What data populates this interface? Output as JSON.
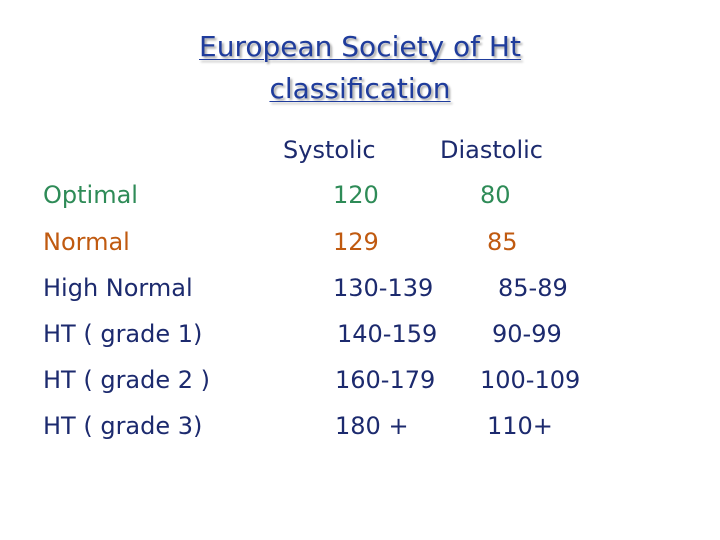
{
  "title": {
    "line1": "European Society of Ht",
    "line2": "classification"
  },
  "columns": {
    "systolic": "Systolic",
    "diastolic": "Diastolic"
  },
  "colors": {
    "title": "#1f3c9c",
    "header": "#1c2a6e",
    "optimal": "#2e8b57",
    "normal": "#c05a10",
    "grades": "#1c2a6e"
  },
  "rows": [
    {
      "label": "Optimal",
      "systolic": "120",
      "diastolic": "80"
    },
    {
      "label": "Normal",
      "systolic": "129",
      "diastolic": "85"
    },
    {
      "label": "High Normal",
      "systolic": "130-139",
      "diastolic": "85-89"
    },
    {
      "label": "HT ( grade 1)",
      "systolic": "140-159",
      "diastolic": "90-99"
    },
    {
      "label": "HT ( grade 2 )",
      "systolic": "160-179",
      "diastolic": "100-109"
    },
    {
      "label": "HT ( grade 3)",
      "systolic": "180 +",
      "diastolic": "110+"
    }
  ]
}
